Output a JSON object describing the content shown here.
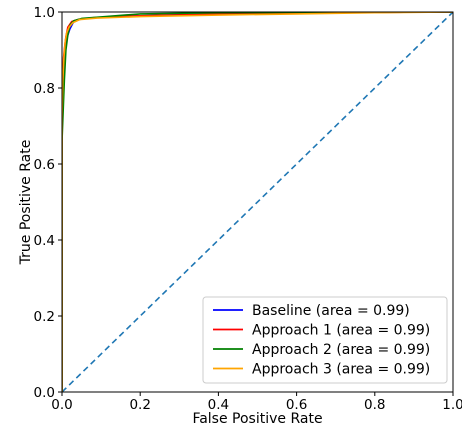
{
  "chart_data": {
    "type": "line",
    "title": "",
    "xlabel": "False Positive Rate",
    "ylabel": "True Positive Rate",
    "xlim": [
      0.0,
      1.0
    ],
    "ylim": [
      0.0,
      1.0
    ],
    "xticks": [
      "0.0",
      "0.2",
      "0.4",
      "0.6",
      "0.8",
      "1.0"
    ],
    "yticks": [
      "0.0",
      "0.2",
      "0.4",
      "0.6",
      "0.8",
      "1.0"
    ],
    "grid": false,
    "legend_position": "lower-right",
    "series": [
      {
        "name": "Baseline (area = 0.99)",
        "color": "#0000ff",
        "x": [
          0.0,
          0.0,
          0.002,
          0.005,
          0.008,
          0.012,
          0.02,
          0.03,
          0.05,
          0.1,
          0.2,
          0.4,
          0.6,
          0.8,
          1.0
        ],
        "y": [
          0.0,
          0.68,
          0.76,
          0.85,
          0.9,
          0.93,
          0.955,
          0.975,
          0.982,
          0.986,
          0.99,
          0.995,
          0.998,
          0.999,
          1.0
        ]
      },
      {
        "name": "Approach 1 (area = 0.99)",
        "color": "#ff0000",
        "x": [
          0.0,
          0.0,
          0.002,
          0.004,
          0.007,
          0.01,
          0.015,
          0.025,
          0.04,
          0.08,
          0.2,
          0.4,
          0.6,
          0.8,
          1.0
        ],
        "y": [
          0.0,
          0.7,
          0.8,
          0.88,
          0.91,
          0.935,
          0.96,
          0.975,
          0.98,
          0.985,
          0.99,
          0.995,
          0.998,
          0.999,
          1.0
        ]
      },
      {
        "name": "Approach 2 (area = 0.99)",
        "color": "#008000",
        "x": [
          0.0,
          0.0,
          0.003,
          0.006,
          0.01,
          0.015,
          0.02,
          0.03,
          0.05,
          0.1,
          0.2,
          0.4,
          0.6,
          0.8,
          1.0
        ],
        "y": [
          0.0,
          0.66,
          0.74,
          0.82,
          0.9,
          0.94,
          0.965,
          0.977,
          0.983,
          0.987,
          0.995,
          0.998,
          0.999,
          1.0,
          1.0
        ]
      },
      {
        "name": "Approach 3 (area = 0.99)",
        "color": "#ffa500",
        "x": [
          0.0,
          0.0,
          0.002,
          0.005,
          0.008,
          0.012,
          0.018,
          0.028,
          0.045,
          0.09,
          0.2,
          0.4,
          0.6,
          0.8,
          1.0
        ],
        "y": [
          0.0,
          0.72,
          0.82,
          0.88,
          0.92,
          0.945,
          0.96,
          0.972,
          0.98,
          0.984,
          0.988,
          0.992,
          0.995,
          0.998,
          1.0
        ]
      }
    ],
    "reference_line": {
      "color": "#1f77b4",
      "style": "dashed",
      "x": [
        0.0,
        1.0
      ],
      "y": [
        0.0,
        1.0
      ]
    }
  }
}
